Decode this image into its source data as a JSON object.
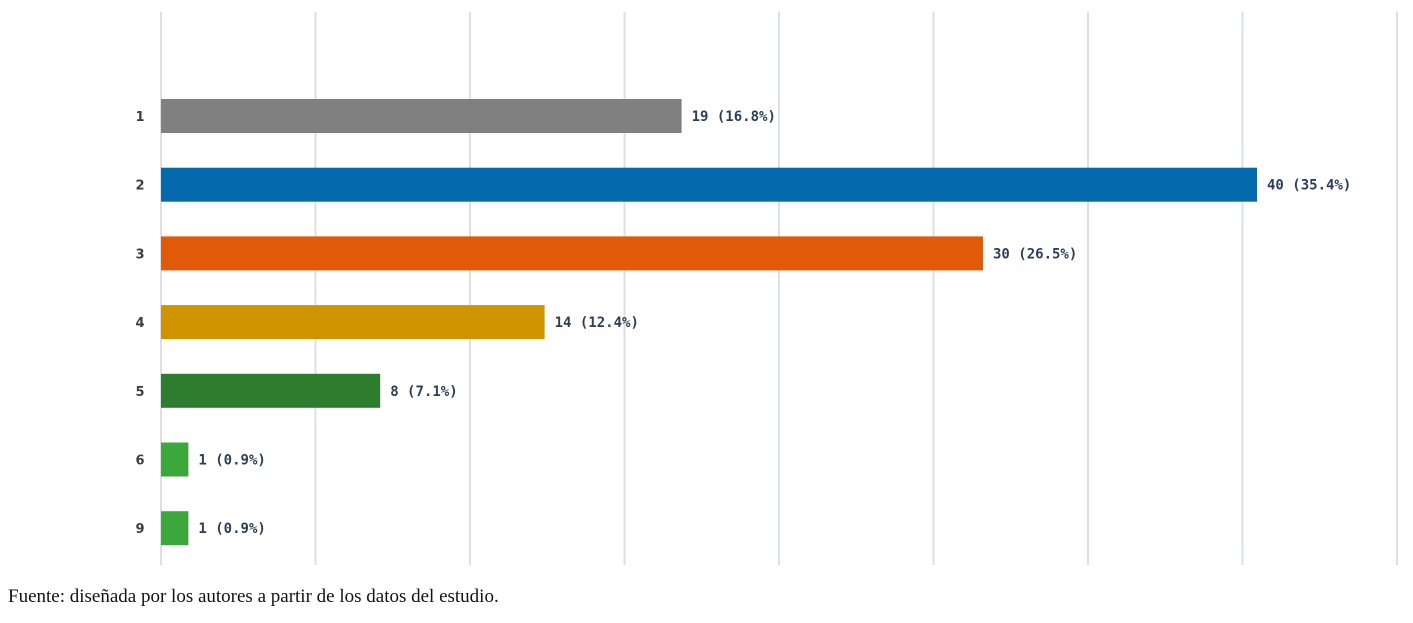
{
  "chart_data": {
    "type": "bar",
    "orientation": "horizontal",
    "categories": [
      "1",
      "2",
      "3",
      "4",
      "5",
      "6",
      "9"
    ],
    "values": [
      19,
      40,
      30,
      14,
      8,
      1,
      1
    ],
    "labels": [
      "19 (16.8%)",
      "40 (35.4%)",
      "30 (26.5%)",
      "14 (12.4%)",
      "8 (7.1%)",
      "1 (0.9%)",
      "1 (0.9%)"
    ],
    "colors": [
      "#808080",
      "#0569ae",
      "#e05a0a",
      "#d09400",
      "#2e7d2e",
      "#3aa83a",
      "#3aa83a"
    ],
    "xlim": [
      0,
      45
    ],
    "grid": true,
    "legend": "none"
  },
  "source_note": "Fuente: diseñada por los autores a partir de los datos del estudio."
}
